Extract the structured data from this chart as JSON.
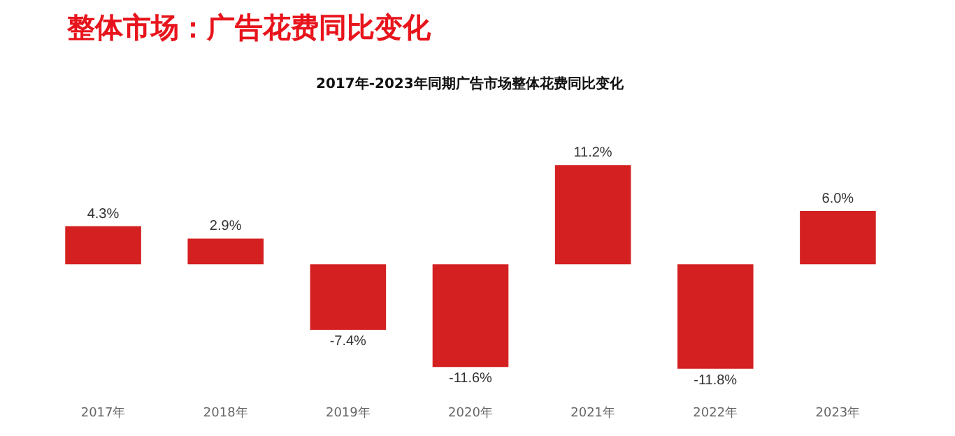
{
  "chart_data": {
    "type": "bar",
    "title": "整体市场：广告花费同比变化",
    "subtitle": "2017年-2023年同期广告市场整体花费同比变化",
    "categories": [
      "2017年",
      "2018年",
      "2019年",
      "2020年",
      "2021年",
      "2022年",
      "2023年"
    ],
    "values": [
      4.3,
      2.9,
      -7.4,
      -11.6,
      11.2,
      -11.8,
      6.0
    ],
    "value_labels": [
      "4.3%",
      "2.9%",
      "-7.4%",
      "-11.6%",
      "11.2%",
      "-11.8%",
      "6.0%"
    ],
    "color": "#d42020",
    "grid": false,
    "legend": false,
    "tick_labels": "x"
  }
}
